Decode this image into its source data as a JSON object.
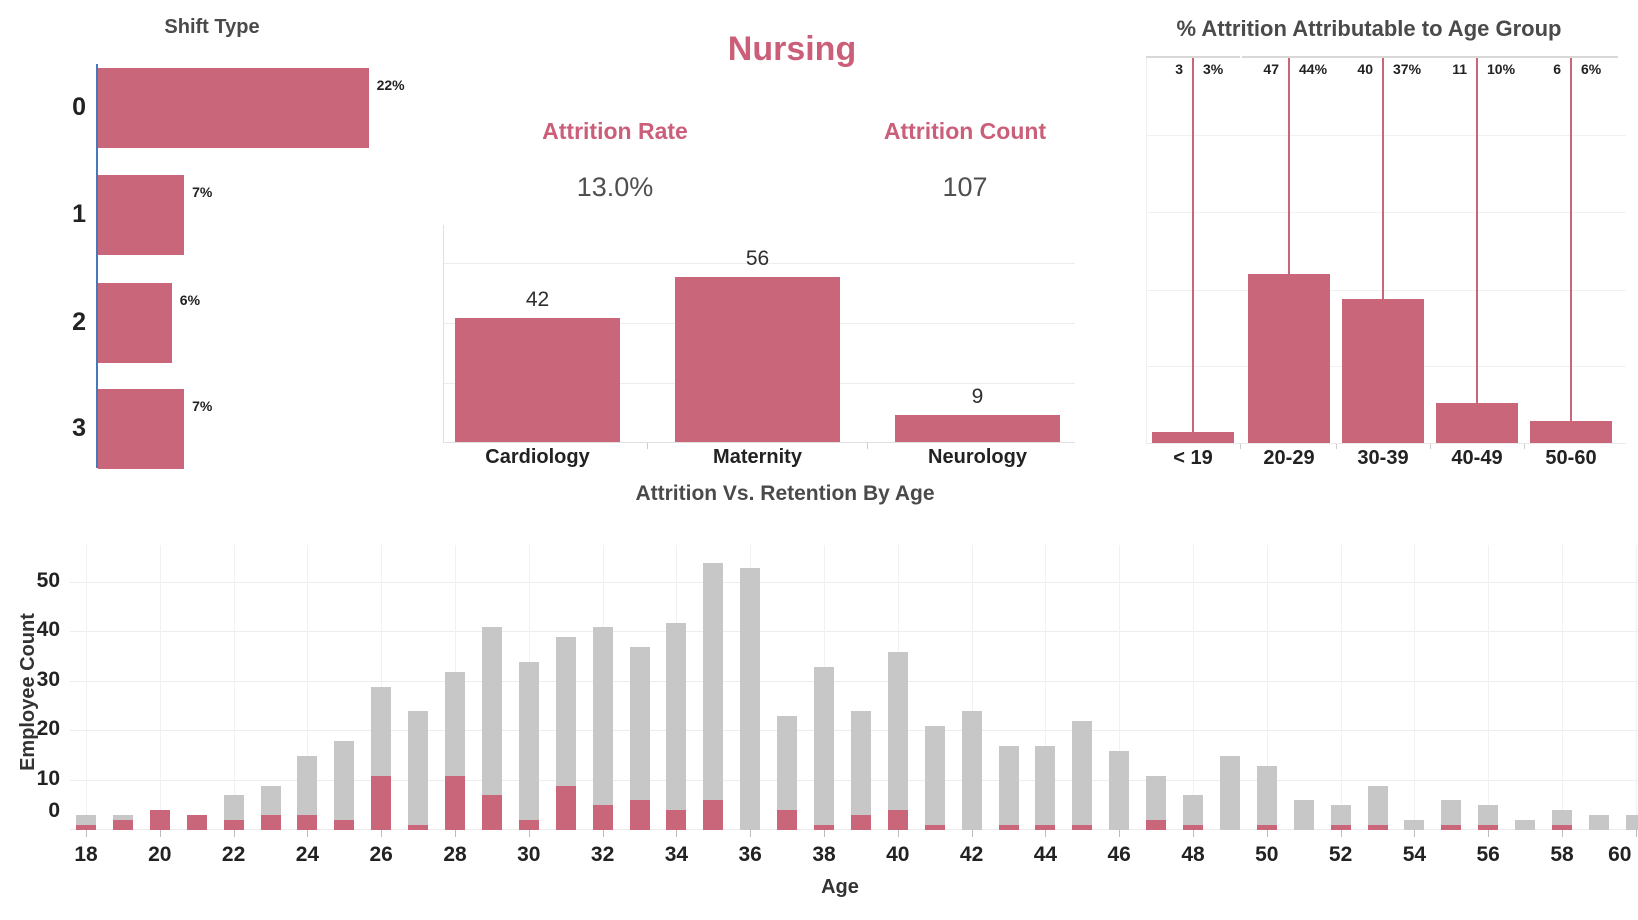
{
  "colors": {
    "accent_pink": "#ca667a",
    "heading_pink": "#cb5f7a",
    "bar_gray": "#c7c7c7",
    "axis_blue": "#4878b8",
    "title_gray": "#4a4a4a",
    "label_dark": "#222222",
    "gridline": "#ededed",
    "axis_line": "#e0e0e0"
  },
  "chart_data": [
    {
      "id": "shift_type",
      "type": "bar",
      "orientation": "horizontal",
      "title": "Shift Type",
      "categories": [
        "0",
        "1",
        "2",
        "3"
      ],
      "values": [
        22,
        7,
        6,
        7
      ],
      "value_labels": [
        "22%",
        "7%",
        "6%",
        "7%"
      ],
      "unit": "percent_attrition",
      "xlim": [
        0,
        24
      ],
      "grid": false
    },
    {
      "id": "department_attrition",
      "type": "bar",
      "title": "Nursing",
      "kpis": [
        {
          "label": "Attrition Rate",
          "value": "13.0%"
        },
        {
          "label": "Attrition Count",
          "value": "107"
        }
      ],
      "categories": [
        "Cardiology",
        "Maternity",
        "Neurology"
      ],
      "values": [
        42,
        56,
        9
      ],
      "value_labels": [
        "42",
        "56",
        "9"
      ],
      "ylim": [
        0,
        72
      ],
      "grid_step": 20,
      "grid": true
    },
    {
      "id": "age_group_attrition",
      "type": "bar",
      "title": "% Attrition Attributable to Age Group",
      "categories": [
        "< 19",
        "20-29",
        "30-39",
        "40-49",
        "50-60"
      ],
      "values": [
        3,
        47,
        40,
        11,
        6
      ],
      "count_labels": [
        "3",
        "47",
        "40",
        "11",
        "6"
      ],
      "pct_labels": [
        "3%",
        "44%",
        "37%",
        "10%",
        "6%"
      ],
      "ylim": [
        0,
        107
      ],
      "grid": true
    },
    {
      "id": "attrition_vs_retention_by_age",
      "type": "stacked-bar",
      "title": "Attrition Vs. Retention By Age",
      "xlabel": "Age",
      "ylabel": "Employee Count",
      "x": [
        18,
        19,
        20,
        21,
        22,
        23,
        24,
        25,
        26,
        27,
        28,
        29,
        30,
        31,
        32,
        33,
        34,
        35,
        36,
        37,
        38,
        39,
        40,
        41,
        42,
        43,
        44,
        45,
        46,
        47,
        48,
        49,
        50,
        51,
        52,
        53,
        54,
        55,
        56,
        57,
        58,
        59,
        60
      ],
      "x_tick_labels": [
        "18",
        "20",
        "22",
        "24",
        "26",
        "28",
        "30",
        "32",
        "34",
        "36",
        "38",
        "40",
        "42",
        "44",
        "46",
        "48",
        "50",
        "52",
        "54",
        "56",
        "58",
        "60"
      ],
      "yticks": [
        0,
        10,
        20,
        30,
        40,
        50
      ],
      "ylim": [
        0,
        57
      ],
      "legend": "none",
      "grid": true,
      "series": [
        {
          "name": "Attrition",
          "color": "#ca667a",
          "values": [
            1,
            2,
            4,
            3,
            2,
            3,
            3,
            2,
            11,
            1,
            11,
            7,
            2,
            9,
            5,
            6,
            4,
            6,
            0,
            4,
            1,
            3,
            4,
            1,
            0,
            1,
            1,
            1,
            0,
            2,
            1,
            0,
            1,
            0,
            1,
            1,
            0,
            1,
            1,
            0,
            1,
            0,
            0
          ]
        },
        {
          "name": "Retention",
          "color": "#c7c7c7",
          "values": [
            2,
            1,
            0,
            0,
            5,
            6,
            12,
            16,
            18,
            23,
            21,
            34,
            32,
            30,
            36,
            31,
            38,
            48,
            53,
            19,
            32,
            21,
            32,
            20,
            24,
            16,
            16,
            21,
            16,
            9,
            6,
            15,
            12,
            6,
            4,
            8,
            2,
            5,
            4,
            2,
            3,
            3,
            3
          ]
        }
      ]
    }
  ]
}
